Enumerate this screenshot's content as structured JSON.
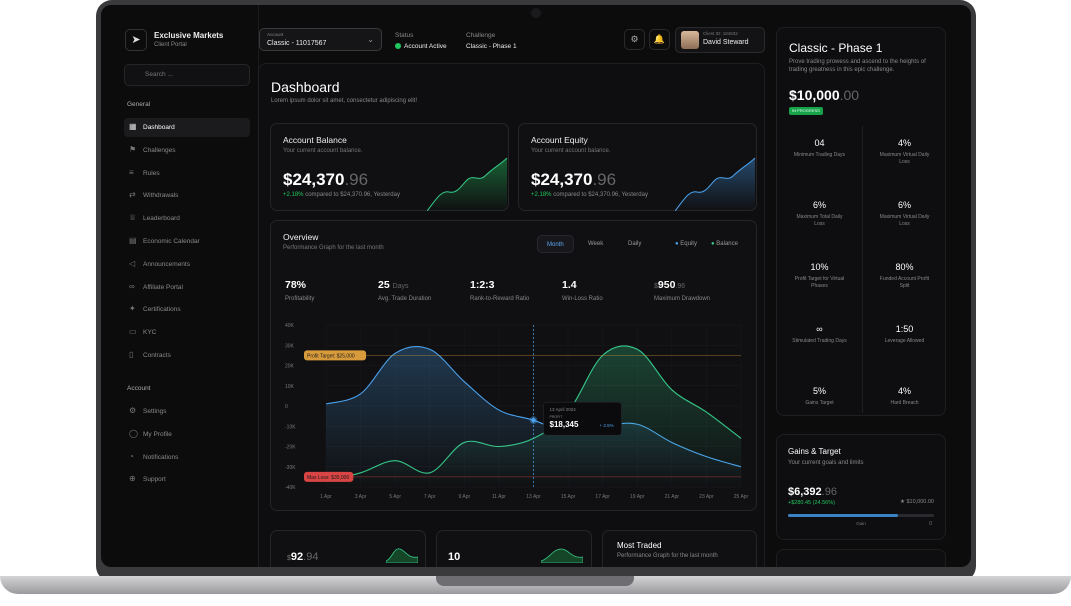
{
  "brand": {
    "name": "Exclusive Markets",
    "subtitle": "Client Portal"
  },
  "search": {
    "placeholder": "Search ..."
  },
  "sidebar": {
    "general_label": "General",
    "general": [
      {
        "label": "Dashboard",
        "icon": "dashboard-icon",
        "active": true
      },
      {
        "label": "Challenges",
        "icon": "flag-icon"
      },
      {
        "label": "Rules",
        "icon": "rules-icon"
      },
      {
        "label": "Withdrawals",
        "icon": "withdraw-icon"
      },
      {
        "label": "Leaderboard",
        "icon": "trophy-icon"
      },
      {
        "label": "Economic Calendar",
        "icon": "calendar-icon"
      },
      {
        "label": "Announcements",
        "icon": "megaphone-icon"
      },
      {
        "label": "Affiliate Portal",
        "icon": "link-icon"
      },
      {
        "label": "Certifications",
        "icon": "certificate-icon"
      },
      {
        "label": "KYC",
        "icon": "id-card-icon"
      },
      {
        "label": "Contracts",
        "icon": "document-icon"
      }
    ],
    "account_label": "Account",
    "account": [
      {
        "label": "Settings",
        "icon": "gear-icon"
      },
      {
        "label": "My Profile",
        "icon": "user-icon"
      },
      {
        "label": "Notifications",
        "icon": "bell-icon"
      },
      {
        "label": "Support",
        "icon": "support-icon"
      }
    ]
  },
  "topbar": {
    "account_label": "Account",
    "account_value": "Classic - 11017567",
    "status_label": "Status",
    "status_value": "Account Active",
    "challenge_label": "Challenge",
    "challenge_value": "Classic - Phase 1",
    "user_label": "Client ID: 184832",
    "user_name": "David Steward"
  },
  "dashboard": {
    "title": "Dashboard",
    "subtitle": "Lorem ipsum dolor sit amet, consectetur adipiscing elit!",
    "balance": {
      "title": "Account Balance",
      "subtitle": "Your current account balance.",
      "amount": "$24,370",
      "cents": ".96",
      "change": "+2.18%",
      "change_text": "compared to $24,370.96, Yesterday"
    },
    "equity": {
      "title": "Account Equity",
      "subtitle": "Your current account balance.",
      "amount": "$24,370",
      "cents": ".96",
      "change": "+2.18%",
      "change_text": "compared to $24,370.96, Yesterday"
    },
    "overview": {
      "title": "Overview",
      "subtitle": "Performance Graph for the last month",
      "tabs": [
        "Month",
        "Week",
        "Daily"
      ],
      "legend": [
        "Equity",
        "Balance"
      ],
      "stats": [
        {
          "value": "78%",
          "unit": "",
          "label": "Profitability"
        },
        {
          "value": "25",
          "unit": "Days",
          "label": "Avg. Trade Duration"
        },
        {
          "value": "1:2:3",
          "unit": "",
          "label": "Rank-to-Reward Ratio"
        },
        {
          "value": "1.4",
          "unit": "",
          "label": "Win-Loss Ratio"
        },
        {
          "value": "950",
          "unit": ".96",
          "prefix": "$",
          "label": "Maximum Drawdown"
        }
      ]
    },
    "bottom": [
      {
        "prefix": "$",
        "value": "92",
        "cents": ".94"
      },
      {
        "value": "10"
      },
      {
        "title": "Most Traded",
        "subtitle": "Performance Graph for the last month"
      }
    ]
  },
  "chart_data": {
    "type": "line",
    "x": [
      "1 Apr",
      "3 Apr",
      "5 Apr",
      "7 Apr",
      "9 Apr",
      "11 Apr",
      "13 Apr",
      "15 Apr",
      "17 Apr",
      "19 Apr",
      "21 Apr",
      "23 Apr",
      "25 Apr"
    ],
    "yticks": [
      "40K",
      "30K",
      "20K",
      "10K",
      "0",
      "-10K",
      "-20K",
      "-30K",
      "-40K"
    ],
    "ylim": [
      -40000,
      40000
    ],
    "series": [
      {
        "name": "Equity",
        "color": "#4aa3f0",
        "values": [
          1000,
          6000,
          26000,
          28000,
          12000,
          -2000,
          -7000,
          -13000,
          -10000,
          -9000,
          -18000,
          -25000,
          -30000
        ]
      },
      {
        "name": "Balance",
        "color": "#36c98a",
        "values": [
          -37000,
          -33000,
          -27000,
          -33000,
          -18000,
          -20000,
          -16000,
          -3000,
          25000,
          28000,
          8000,
          -3000,
          -16000
        ]
      }
    ],
    "profit_target": {
      "label": "Profit Target: $25,000",
      "value": 25000,
      "color": "#d89b3c"
    },
    "max_loss": {
      "label": "Max Loss: $35,000",
      "value": -35000,
      "color": "#d94444"
    },
    "tooltip": {
      "date": "13 April 2024",
      "label": "PROFIT",
      "value": "$18,345",
      "change": "+ 2.5%"
    }
  },
  "phase": {
    "title": "Classic - Phase 1",
    "subtitle": "Prove trading prowess and ascend to the heights of trading greatness in this epic challenge.",
    "amount": "$10,000",
    "cents": ".00",
    "status": "In progress",
    "items": [
      {
        "value": "04",
        "label": "Minimum Trading Days"
      },
      {
        "value": "4%",
        "label": "Maximum Virtual Daily Loss"
      },
      {
        "value": "6%",
        "label": "Maximum Total Daily Loss"
      },
      {
        "value": "6%",
        "label": "Maximum Virtual Daily Loss"
      },
      {
        "value": "10%",
        "label": "Profit Target for Virtual Phases"
      },
      {
        "value": "80%",
        "label": "Funded Account Profit Split"
      },
      {
        "value": "∞",
        "label": "Stimulated Trading Days"
      },
      {
        "value": "1:50",
        "label": "Leverage Allowed"
      },
      {
        "value": "5%",
        "label": "Gains Target"
      },
      {
        "value": "4%",
        "label": "Hard Breach"
      }
    ]
  },
  "gains": {
    "title": "Gains & Target",
    "subtitle": "Your current goals and limits",
    "amount": "$6,392",
    "cents": ".96",
    "change": "+$280.45 (24.56%)",
    "target": "$10,000.00",
    "progress": 0.75,
    "gains_label": "Gain",
    "zero_label": "0"
  }
}
